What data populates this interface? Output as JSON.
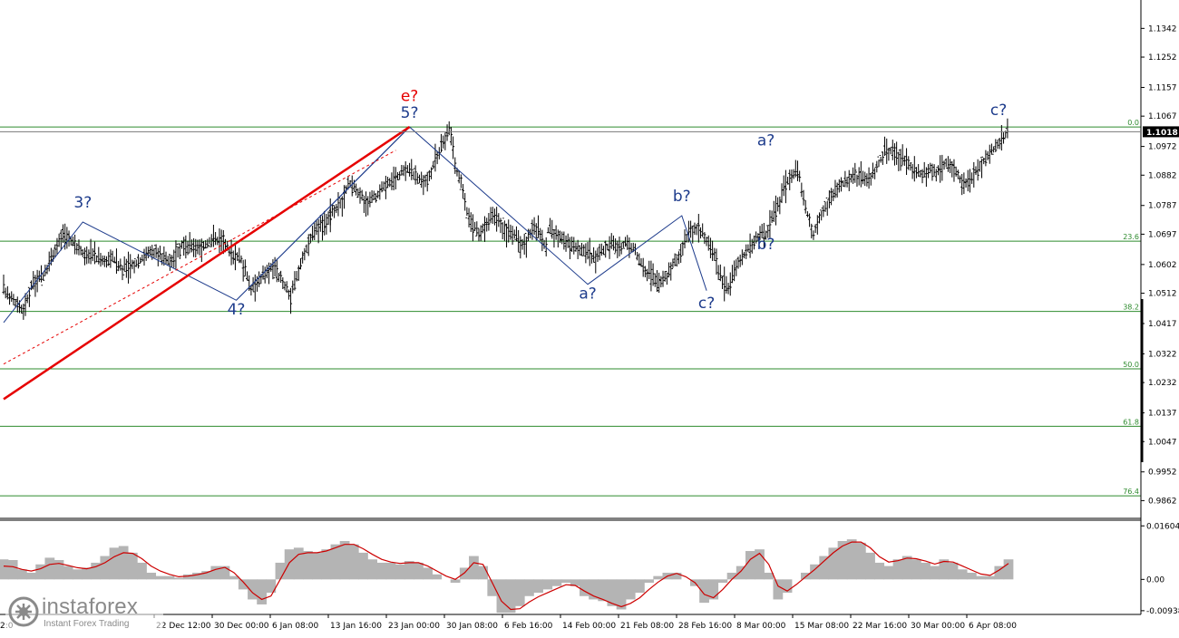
{
  "chart_data": [
    {
      "type": "ohlc",
      "ylim": [
        0.9812,
        1.1431
      ],
      "y_ticks": [
        "1.1342",
        "1.1252",
        "1.1157",
        "1.1067",
        "1.0972",
        "1.0882",
        "1.0787",
        "1.0697",
        "1.0602",
        "1.0512",
        "1.0417",
        "1.0322",
        "1.0232",
        "1.0137",
        "1.0047",
        "0.9952",
        "0.9862"
      ],
      "current_price_label": "1.1018",
      "current_price": 1.1018,
      "top_level": 1.1033,
      "fib_levels": [
        {
          "label": "0.0",
          "value": 1.1033
        },
        {
          "label": "23.6",
          "value": 1.0675
        },
        {
          "label": "38.2",
          "value": 1.0455
        },
        {
          "label": "50.0",
          "value": 1.0275
        },
        {
          "label": "61.8",
          "value": 1.0095
        },
        {
          "label": "76.4",
          "value": 0.9877
        }
      ],
      "x_labels": [
        "22 Dec 12:00",
        "30 Dec 00:00",
        "6 Jan 08:00",
        "13 Jan 16:00",
        "23 Jan 00:00",
        "30 Jan 08:00",
        "6 Feb 16:00",
        "14 Feb 00:00",
        "21 Feb 08:00",
        "28 Feb 16:00",
        "8 Mar 00:00",
        "15 Mar 08:00",
        "22 Mar 16:00",
        "30 Mar 00:00",
        "6 Apr 08:00"
      ],
      "x_label_left_fragment": "2:0",
      "x_index_range": [
        0,
        139
      ],
      "price_path": [
        [
          0,
          1.052
        ],
        [
          2,
          1.049
        ],
        [
          4,
          1.0455
        ],
        [
          6,
          1.055
        ],
        [
          8,
          1.056
        ],
        [
          10,
          1.064
        ],
        [
          12,
          1.07
        ],
        [
          14,
          1.067
        ],
        [
          16,
          1.064
        ],
        [
          18,
          1.063
        ],
        [
          20,
          1.061
        ],
        [
          22,
          1.062
        ],
        [
          24,
          1.059
        ],
        [
          26,
          1.06
        ],
        [
          28,
          1.062
        ],
        [
          30,
          1.065
        ],
        [
          32,
          1.062
        ],
        [
          34,
          1.062
        ],
        [
          36,
          1.066
        ],
        [
          38,
          1.0655
        ],
        [
          40,
          1.0655
        ],
        [
          42,
          1.068
        ],
        [
          44,
          1.068
        ],
        [
          46,
          1.064
        ],
        [
          48,
          1.062
        ],
        [
          50,
          1.052
        ],
        [
          52,
          1.056
        ],
        [
          54,
          1.059
        ],
        [
          56,
          1.056
        ],
        [
          58,
          1.05
        ],
        [
          60,
          1.06
        ],
        [
          62,
          1.069
        ],
        [
          64,
          1.072
        ],
        [
          66,
          1.076
        ],
        [
          68,
          1.078
        ],
        [
          70,
          1.08
        ],
        [
          72,
          1.086
        ],
        [
          74,
          1.084
        ],
        [
          76,
          1.082
        ],
        [
          78,
          1.079
        ],
        [
          80,
          1.081
        ],
        [
          82,
          1.082
        ],
        [
          84,
          1.085
        ],
        [
          86,
          1.086
        ],
        [
          88,
          1.087
        ],
        [
          90,
          1.089
        ],
        [
          92,
          1.09
        ],
        [
          94,
          1.088
        ],
        [
          96,
          1.087
        ],
        [
          98,
          1.086
        ],
        [
          100,
          1.09
        ],
        [
          102,
          1.095
        ],
        [
          104,
          1.099
        ],
        [
          106,
          1.102
        ],
        [
          108,
          1.09
        ],
        [
          110,
          1.085
        ],
        [
          112,
          1.076
        ],
        [
          114,
          1.072
        ],
        [
          116,
          1.07
        ],
        [
          118,
          1.072
        ],
        [
          120,
          1.076
        ],
        [
          122,
          1.075
        ],
        [
          124,
          1.072
        ],
        [
          126,
          1.07
        ],
        [
          128,
          1.069
        ],
        [
          130,
          1.066
        ],
        [
          132,
          1.068
        ],
        [
          134,
          1.072
        ],
        [
          136,
          1.07
        ],
        [
          138,
          1.066
        ],
        [
          139,
          1.064
        ]
      ],
      "price_path_2": [
        [
          66,
          1.071
        ],
        [
          68,
          1.07
        ],
        [
          70,
          1.068
        ],
        [
          72,
          1.066
        ],
        [
          74,
          1.065
        ],
        [
          76,
          1.064
        ],
        [
          78,
          1.062
        ],
        [
          80,
          1.065
        ],
        [
          82,
          1.066
        ],
        [
          84,
          1.065
        ],
        [
          86,
          1.067
        ],
        [
          88,
          1.065
        ],
        [
          90,
          1.06
        ],
        [
          92,
          1.057
        ],
        [
          94,
          1.054
        ],
        [
          96,
          1.056
        ],
        [
          98,
          1.06
        ],
        [
          100,
          1.064
        ],
        [
          102,
          1.07
        ],
        [
          104,
          1.072
        ],
        [
          106,
          1.069
        ],
        [
          108,
          1.065
        ],
        [
          110,
          1.057
        ],
        [
          112,
          1.052
        ],
        [
          114,
          1.059
        ],
        [
          116,
          1.063
        ],
        [
          118,
          1.066
        ],
        [
          120,
          1.069
        ],
        [
          122,
          1.07
        ],
        [
          124,
          1.076
        ],
        [
          126,
          1.082
        ],
        [
          128,
          1.088
        ],
        [
          130,
          1.09
        ],
        [
          132,
          1.078
        ],
        [
          134,
          1.07
        ],
        [
          136,
          1.076
        ],
        [
          138,
          1.08
        ],
        [
          140,
          1.084
        ],
        [
          142,
          1.086
        ],
        [
          144,
          1.088
        ],
        [
          146,
          1.087
        ],
        [
          148,
          1.087
        ],
        [
          150,
          1.09
        ],
        [
          152,
          1.095
        ],
        [
          154,
          1.096
        ],
        [
          156,
          1.094
        ],
        [
          158,
          1.092
        ],
        [
          160,
          1.09
        ],
        [
          162,
          1.088
        ],
        [
          164,
          1.09
        ],
        [
          166,
          1.089
        ],
        [
          168,
          1.092
        ],
        [
          170,
          1.09
        ],
        [
          172,
          1.086
        ],
        [
          174,
          1.086
        ],
        [
          176,
          1.09
        ],
        [
          178,
          1.093
        ],
        [
          180,
          1.096
        ],
        [
          182,
          1.099
        ],
        [
          184,
          1.102
        ]
      ],
      "wave_lines": [
        {
          "color": "#1e3c8c",
          "points": [
            [
              0,
              1.042
            ],
            [
              17,
              1.0735
            ],
            [
              51,
              1.049
            ],
            [
              89,
              1.1033
            ],
            [
              128,
              1.054
            ],
            [
              150,
              1.0755
            ],
            [
              157,
              1.052
            ]
          ]
        },
        {
          "color": "#1e3c8c",
          "points": [
            [
              51,
              1.049
            ],
            [
              89,
              1.1033
            ]
          ]
        }
      ],
      "trend_line": {
        "color": "#e60000",
        "points": [
          [
            0,
            1.018
          ],
          [
            89,
            1.1033
          ]
        ]
      },
      "trend_line_dashed": {
        "color": "#e60000",
        "points": [
          [
            0,
            1.029
          ],
          [
            86,
            1.096
          ]
        ]
      },
      "wave_labels": [
        {
          "text": "3?",
          "color": "#1e3c8c",
          "at": [
            17,
            1.078
          ]
        },
        {
          "text": "4?",
          "color": "#1e3c8c",
          "at": [
            51,
            1.0445
          ]
        },
        {
          "text": "5?",
          "color": "#1e3c8c",
          "at": [
            89,
            1.1062
          ]
        },
        {
          "text": "e?",
          "color": "#e60000",
          "at": [
            89,
            1.1115
          ]
        },
        {
          "text": "a?",
          "color": "#1e3c8c",
          "at": [
            128,
            1.0495
          ]
        },
        {
          "text": "b?",
          "color": "#1e3c8c",
          "at": [
            150,
            1.08
          ]
        },
        {
          "text": "c?",
          "color": "#1e3c8c",
          "at": [
            157,
            1.0465
          ]
        },
        {
          "text": "a?",
          "color": "#1e3c8c",
          "at": [
            170,
            1.0975
          ]
        },
        {
          "text": "b?",
          "color": "#1e3c8c",
          "at": [
            170,
            1.065
          ]
        },
        {
          "text": "c?",
          "color": "#1e3c8c",
          "at": [
            203,
            1.107
          ]
        }
      ]
    },
    {
      "type": "macd",
      "ylim": [
        -0.0105,
        0.0172
      ],
      "y_ticks": [
        "0.01604",
        "0.00",
        "-0.00938"
      ],
      "histogram_color": "#b4b4b4",
      "signal_color": "#cc0000",
      "values_note": "",
      "values": [
        0.006,
        0.0058,
        0.003,
        0.002,
        0.0045,
        0.0065,
        0.0058,
        0.004,
        0.003,
        0.0035,
        0.005,
        0.007,
        0.0095,
        0.01,
        0.008,
        0.005,
        0.002,
        0.001,
        0.001,
        0.0005,
        0.0015,
        0.002,
        0.0025,
        0.004,
        0.004,
        0.001,
        -0.003,
        -0.006,
        -0.0075,
        -0.004,
        0.005,
        0.009,
        0.0095,
        0.0085,
        0.008,
        0.009,
        0.0105,
        0.0115,
        0.0105,
        0.008,
        0.006,
        0.005,
        0.005,
        0.0045,
        0.0055,
        0.005,
        0.0035,
        0.0015,
        0.0,
        -0.001,
        0.0035,
        0.007,
        0.004,
        -0.005,
        -0.01,
        -0.01,
        -0.008,
        -0.005,
        -0.004,
        -0.003,
        -0.002,
        -0.001,
        -0.002,
        -0.005,
        -0.006,
        -0.0065,
        -0.008,
        -0.009,
        -0.006,
        -0.004,
        -0.001,
        0.001,
        0.002,
        0.002,
        0.0,
        -0.002,
        -0.007,
        -0.006,
        -0.001,
        0.002,
        0.004,
        0.0085,
        0.009,
        0.002,
        -0.006,
        -0.004,
        0.0,
        0.002,
        0.0045,
        0.007,
        0.0095,
        0.0115,
        0.012,
        0.011,
        0.008,
        0.005,
        0.004,
        0.006,
        0.007,
        0.006,
        0.005,
        0.004,
        0.006,
        0.005,
        0.003,
        0.002,
        0.001,
        0.001,
        0.004,
        0.006
      ],
      "signal": [
        0.004,
        0.0038,
        0.003,
        0.0025,
        0.0032,
        0.0045,
        0.0048,
        0.0042,
        0.0035,
        0.0032,
        0.0038,
        0.005,
        0.0068,
        0.008,
        0.0078,
        0.0062,
        0.004,
        0.0025,
        0.0015,
        0.0008,
        0.001,
        0.0014,
        0.002,
        0.003,
        0.0036,
        0.002,
        -0.0008,
        -0.004,
        -0.006,
        -0.005,
        0.0,
        0.005,
        0.0075,
        0.008,
        0.008,
        0.0085,
        0.0095,
        0.0105,
        0.0105,
        0.0092,
        0.0075,
        0.006,
        0.0052,
        0.0048,
        0.005,
        0.005,
        0.004,
        0.0025,
        0.001,
        0.0,
        0.002,
        0.005,
        0.0045,
        -0.001,
        -0.0065,
        -0.009,
        -0.0088,
        -0.0068,
        -0.0052,
        -0.004,
        -0.0028,
        -0.0016,
        -0.0018,
        -0.0035,
        -0.005,
        -0.006,
        -0.0072,
        -0.0082,
        -0.0072,
        -0.0055,
        -0.003,
        -0.0008,
        0.001,
        0.0018,
        0.0008,
        -0.001,
        -0.0045,
        -0.0055,
        -0.003,
        0.0,
        0.0025,
        0.006,
        0.0078,
        0.0045,
        -0.002,
        -0.0035,
        -0.0015,
        0.0008,
        0.003,
        0.0055,
        0.008,
        0.01,
        0.0112,
        0.0112,
        0.0095,
        0.0068,
        0.0052,
        0.0056,
        0.0064,
        0.0062,
        0.0055,
        0.0046,
        0.0054,
        0.0052,
        0.004,
        0.0028,
        0.0016,
        0.0012,
        0.0028,
        0.0048
      ]
    }
  ],
  "brand": {
    "name": "instaforex",
    "subtitle": "Instant Forex Trading"
  }
}
